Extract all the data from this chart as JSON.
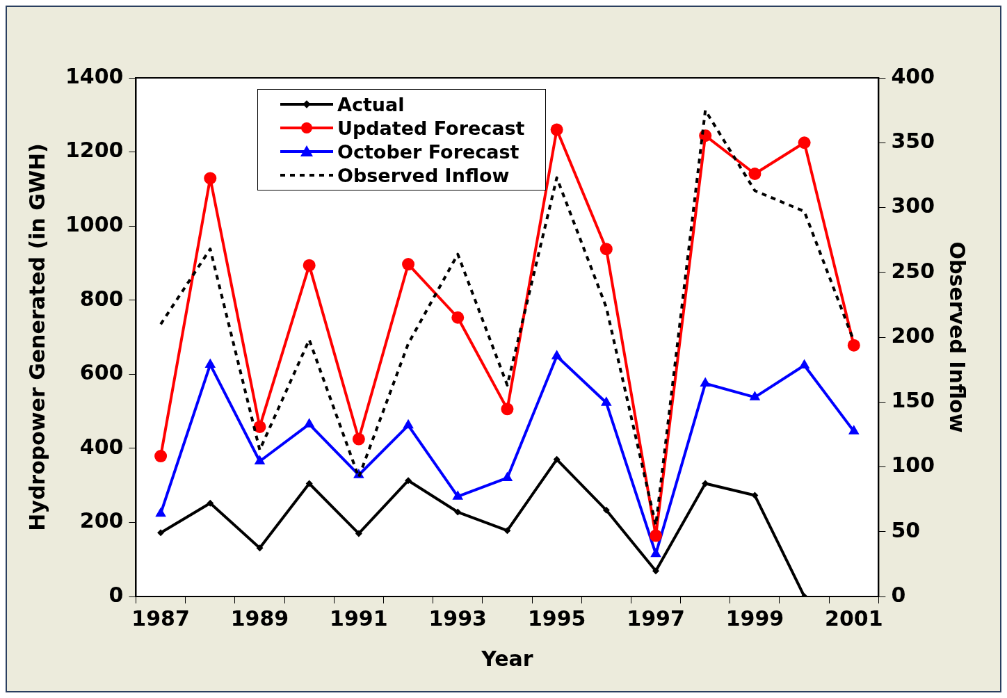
{
  "chart_data": {
    "type": "line",
    "xlabel": "Year",
    "ylabel": "Hydropower Generated (in GWH)",
    "y2label": "Observed Inflow",
    "categories": [
      "1987",
      null,
      "1989",
      null,
      "1991",
      null,
      "1993",
      null,
      "1995",
      null,
      "1997",
      null,
      "1999",
      null,
      "2001"
    ],
    "series": [
      {
        "name": "Actual",
        "color": "#000000",
        "marker": "diamond",
        "values": [
          172,
          252,
          131,
          305,
          170,
          313,
          228,
          178,
          370,
          233,
          69,
          305,
          273,
          0,
          null
        ]
      },
      {
        "name": "Updated Forecast",
        "color": "#ff0000",
        "marker": "circle",
        "values": [
          379,
          1129,
          458,
          894,
          425,
          897,
          753,
          506,
          1260,
          938,
          164,
          1244,
          1141,
          1225,
          678
        ]
      },
      {
        "name": "October Forecast",
        "color": "#0000ff",
        "marker": "triangle",
        "values": [
          224,
          626,
          365,
          465,
          328,
          462,
          270,
          320,
          649,
          523,
          115,
          575,
          538,
          624,
          446
        ]
      },
      {
        "name": "Observed Inflow",
        "color": "#000000",
        "marker": "none",
        "line_style": "dotted",
        "axis": "y2",
        "values": [
          210,
          268,
          113,
          198,
          92,
          195,
          264,
          163,
          323,
          223,
          55,
          375,
          313,
          297,
          197
        ]
      }
    ],
    "ylim": [
      0,
      1400
    ],
    "yticks": [
      0,
      200,
      400,
      600,
      800,
      1000,
      1200,
      1400
    ],
    "y2lim": [
      0,
      400
    ],
    "y2ticks": [
      0,
      50,
      100,
      150,
      200,
      250,
      300,
      350,
      400
    ],
    "grid": false,
    "legend": "top left"
  }
}
